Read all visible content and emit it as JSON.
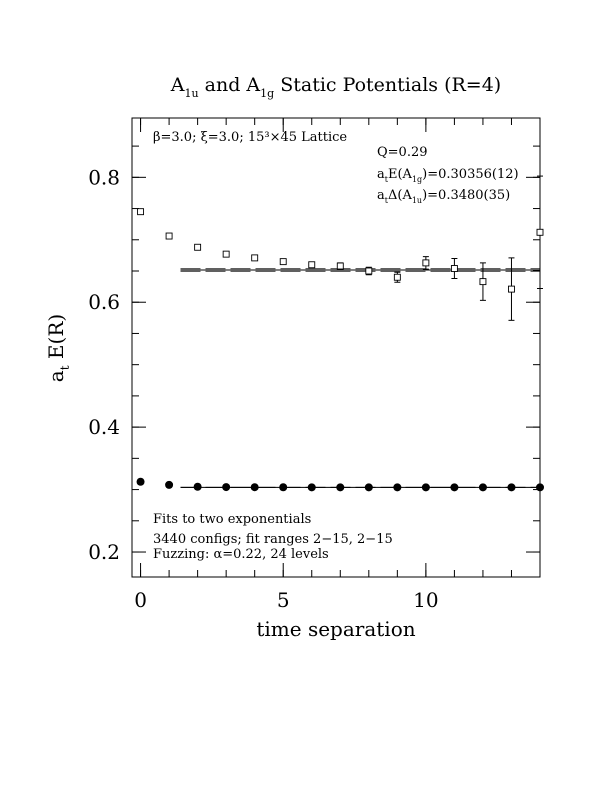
{
  "chart_data": {
    "type": "scatter",
    "title": {
      "main": "A",
      "sub1": "1u",
      "mid": " and A",
      "sub2": "1g",
      "tail": " Static Potentials (R=4)"
    },
    "xlabel": "time separation",
    "ylabel": {
      "main": "a",
      "sub": "t",
      "tail": " E(R)"
    },
    "xlim": [
      -0.3,
      14.0
    ],
    "ylim": [
      0.16,
      0.895
    ],
    "x_ticks": [
      0,
      5,
      10
    ],
    "x_tick_labels": [
      "0",
      "5",
      "10"
    ],
    "y_ticks": [
      0.2,
      0.4,
      0.6,
      0.8
    ],
    "y_tick_labels": [
      "0.2",
      "0.4",
      "0.6",
      "0.8"
    ],
    "x_minor_step": 1,
    "y_minor_step": 0.05,
    "annotations": {
      "lattice": "β=3.0; ξ=3.0; 15³×45 Lattice",
      "q": "Q=0.29",
      "e_pre": "a",
      "e_sub1": "t",
      "e_mid": "E(A",
      "e_sub2": "1g",
      "e_tail": ")=0.30356(12)",
      "d_pre": "a",
      "d_sub1": "t",
      "d_mid": "Δ(A",
      "d_sub2": "1u",
      "d_tail": ")=0.3480(35)",
      "fits": "Fits to two exponentials",
      "configs": "3440 configs; fit ranges 2−15, 2−15",
      "fuzzing": "Fuzzing: α=0.22, 24 levels"
    },
    "series": [
      {
        "marker": "open-square",
        "x": [
          0,
          1,
          2,
          3,
          4,
          5,
          6,
          7,
          8,
          9,
          10,
          11,
          12,
          13,
          14
        ],
        "y": [
          0.745,
          0.706,
          0.688,
          0.677,
          0.671,
          0.665,
          0.66,
          0.658,
          0.65,
          0.64,
          0.663,
          0.654,
          0.633,
          0.621,
          0.712
        ],
        "err": [
          0.002,
          0.002,
          0.002,
          0.002,
          0.002,
          0.003,
          0.004,
          0.005,
          0.006,
          0.008,
          0.01,
          0.016,
          0.03,
          0.05,
          0.09
        ],
        "fit": {
          "x0": 1.4,
          "x1": 14.0,
          "value": 0.6516,
          "band": [
            0.6496,
            0.6536
          ]
        }
      },
      {
        "marker": "filled-circle",
        "x": [
          0,
          1,
          2,
          3,
          4,
          5,
          6,
          7,
          8,
          9,
          10,
          11,
          12,
          13,
          14
        ],
        "y": [
          0.3125,
          0.3075,
          0.3045,
          0.304,
          0.3038,
          0.3037,
          0.3036,
          0.3036,
          0.3036,
          0.3036,
          0.3036,
          0.3036,
          0.3036,
          0.3036,
          0.3036
        ],
        "err": [
          0.001,
          0.001,
          0.001,
          0.001,
          0.001,
          0.001,
          0.001,
          0.001,
          0.001,
          0.001,
          0.001,
          0.001,
          0.001,
          0.001,
          0.001
        ],
        "fit": {
          "x0": 1.4,
          "x1": 14.0,
          "value": 0.30356,
          "band": [
            0.30344,
            0.30368
          ]
        }
      }
    ]
  }
}
